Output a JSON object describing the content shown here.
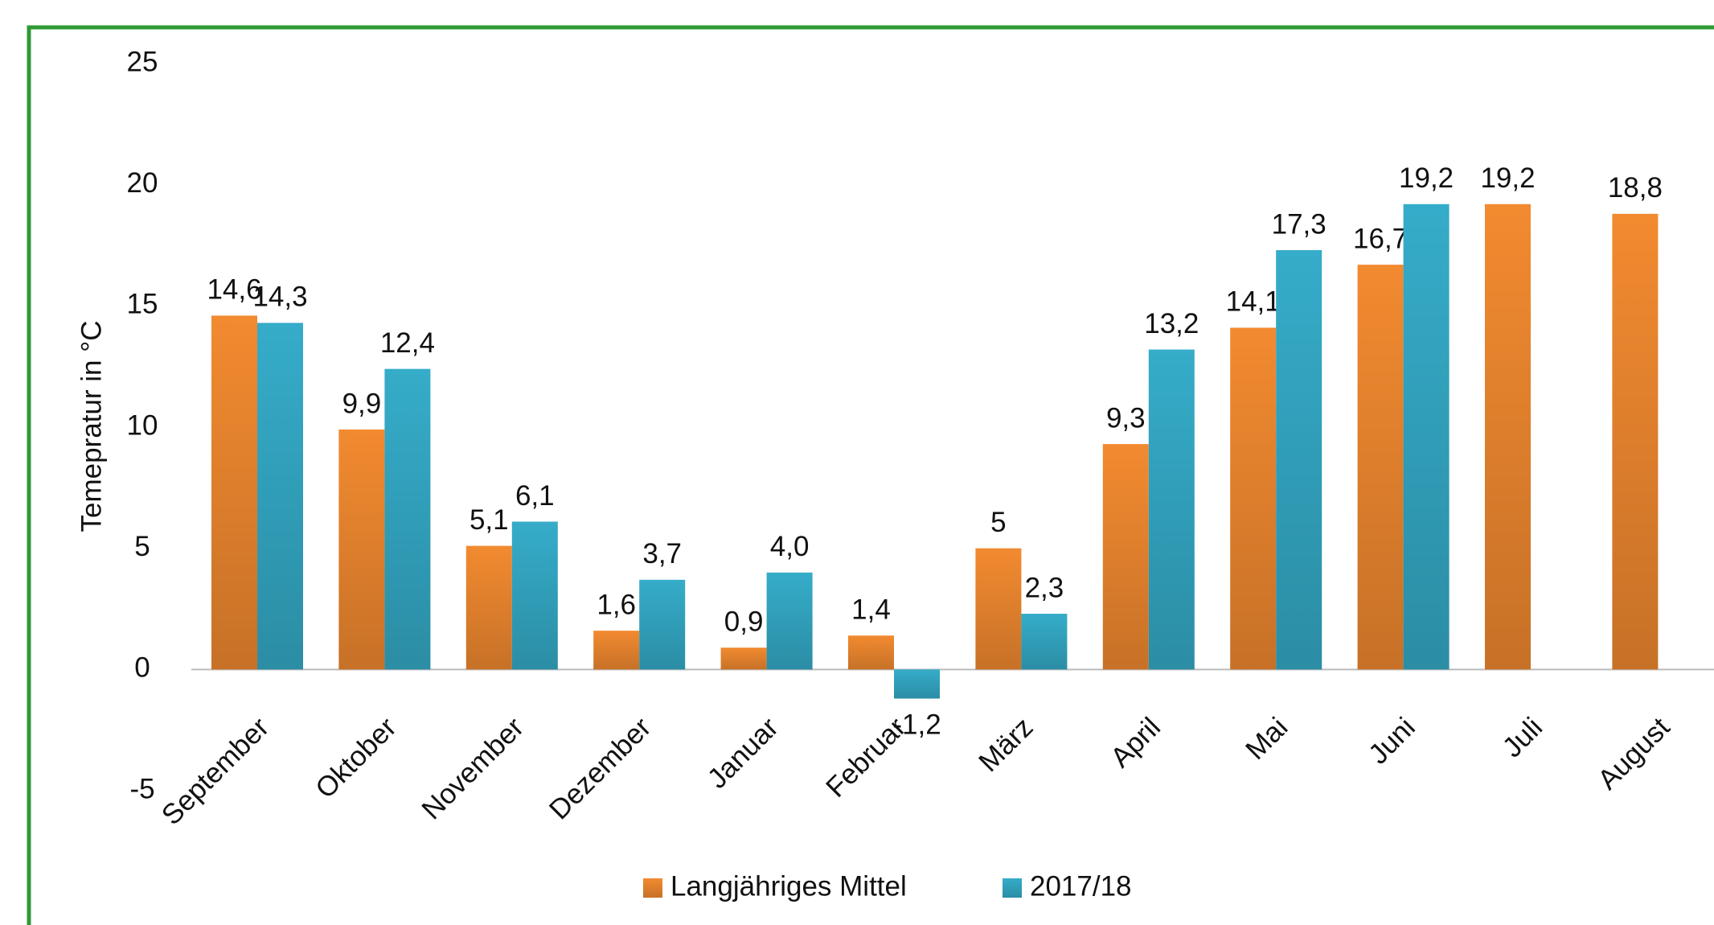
{
  "chart_data": {
    "type": "bar",
    "y_label": "Temepratur in °C",
    "categories": [
      "September",
      "Oktober",
      "November",
      "Dezember",
      "Januar",
      "Februar",
      "März",
      "April",
      "Mai",
      "Juni",
      "Juli",
      "August"
    ],
    "series": [
      {
        "name": "Langjähriges Mittel",
        "color": "#f28a30",
        "values": [
          14.6,
          9.9,
          5.1,
          1.6,
          0.9,
          1.4,
          5,
          9.3,
          14.1,
          16.7,
          19.2,
          18.8
        ],
        "value_labels": [
          "14,6",
          "9,9",
          "5,1",
          "1,6",
          "0,9",
          "1,4",
          "5",
          "9,3",
          "14,1",
          "16,7",
          "19,2",
          "18,8"
        ]
      },
      {
        "name": "2017/18",
        "color": "#35acc9",
        "values": [
          14.3,
          12.4,
          6.1,
          3.7,
          4.0,
          -1.2,
          2.3,
          13.2,
          17.3,
          19.2,
          null,
          null
        ],
        "value_labels": [
          "14,3",
          "12,4",
          "6,1",
          "3,7",
          "4,0",
          "-1,2",
          "2,3",
          "13,2",
          "17,3",
          "19,2",
          null,
          null
        ]
      }
    ],
    "ylim": [
      -5,
      25
    ],
    "yticks": [
      -5,
      0,
      5,
      10,
      15,
      20,
      25
    ],
    "grid": false,
    "legend": "bottom"
  }
}
